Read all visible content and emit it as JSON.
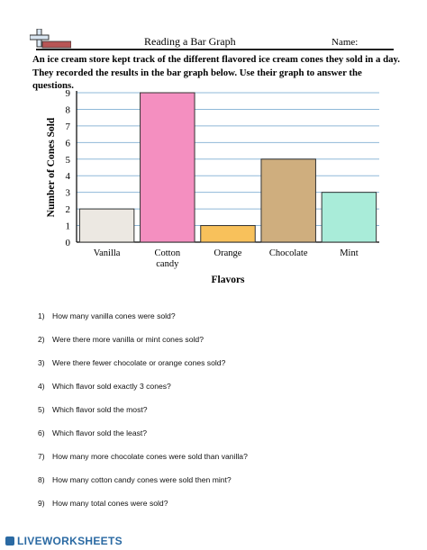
{
  "header": {
    "title": "Reading a Bar Graph",
    "name_label": "Name:"
  },
  "intro_text": "An ice cream store kept track of the different flavored ice cream cones they sold in a day. They recorded the results in the bar graph below. Use their graph to answer the questions.",
  "chart_data": {
    "type": "bar",
    "categories": [
      "Vanilla",
      "Cotton candy",
      "Orange",
      "Chocolate",
      "Mint"
    ],
    "category_lines": [
      [
        "Vanilla"
      ],
      [
        "Cotton",
        "candy"
      ],
      [
        "Orange"
      ],
      [
        "Chocolate"
      ],
      [
        "Mint"
      ]
    ],
    "values": [
      2,
      9,
      1,
      5,
      3
    ],
    "bar_colors": [
      "#ece8e2",
      "#f48fc0",
      "#f8c15b",
      "#cfae7e",
      "#a9ecd9"
    ],
    "title": "",
    "xlabel": "Flavors",
    "ylabel": "Number of Cones Sold",
    "ylim": [
      0,
      9
    ],
    "yticks": [
      0,
      1,
      2,
      3,
      4,
      5,
      6,
      7,
      8,
      9
    ],
    "grid": true,
    "gridline_color": "#8fb8d8"
  },
  "questions": [
    {
      "num": "1)",
      "text": "How many vanilla cones were sold?"
    },
    {
      "num": "2)",
      "text": "Were there more vanilla or mint cones sold?"
    },
    {
      "num": "3)",
      "text": "Were there fewer chocolate or orange cones sold?"
    },
    {
      "num": "4)",
      "text": "Which flavor sold exactly 3 cones?"
    },
    {
      "num": "5)",
      "text": "Which flavor sold the most?"
    },
    {
      "num": "6)",
      "text": "Which flavor sold the least?"
    },
    {
      "num": "7)",
      "text": "How many more chocolate cones were sold than vanilla?"
    },
    {
      "num": "8)",
      "text": "How many cotton candy cones were sold then mint?"
    },
    {
      "num": "9)",
      "text": "How many total cones were sold?"
    }
  ],
  "footer": {
    "brand": "LIVEWORKSHEETS"
  }
}
